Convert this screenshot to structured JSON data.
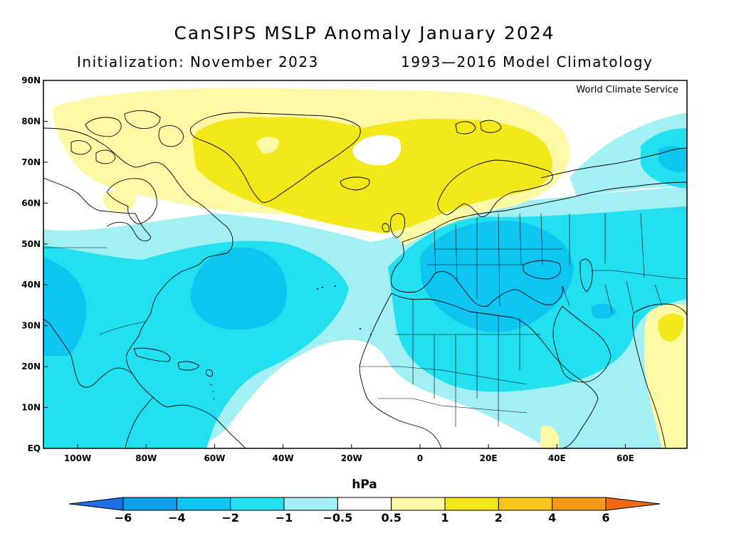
{
  "title": "CanSIPS MSLP Anomaly January 2024",
  "subtitle_left": "Initialization: November 2023",
  "subtitle_right": "1993—2016 Model Climatology",
  "credit": "World Climate Service",
  "map": {
    "lat_labels": [
      "90N",
      "80N",
      "70N",
      "60N",
      "50N",
      "40N",
      "30N",
      "20N",
      "10N",
      "EQ"
    ],
    "lon_labels": [
      "100W",
      "80W",
      "60W",
      "40W",
      "20W",
      "0",
      "20E",
      "40E",
      "60E"
    ],
    "lon_range": [
      -110,
      78
    ],
    "lat_range": [
      0,
      90
    ]
  },
  "colorbar": {
    "unit": "hPa",
    "labels": [
      "-6",
      "-4",
      "-2",
      "-1",
      "-0.5",
      "0.5",
      "1",
      "2",
      "4",
      "6"
    ],
    "colors": {
      "lt_-6": "#1e6fe6",
      "-6_-4": "#119ee8",
      "-4_-2": "#0ec4f0",
      "-2_-1": "#22e0ef",
      "-1_-0.5": "#a2f0f4",
      "-0.5_0.5": "#ffffff",
      "0.5_1": "#fdf9a6",
      "1_2": "#f2e81a",
      "2_4": "#f6c51a",
      "4_6": "#f39a1a",
      "gt_6": "#f06a12"
    }
  }
}
